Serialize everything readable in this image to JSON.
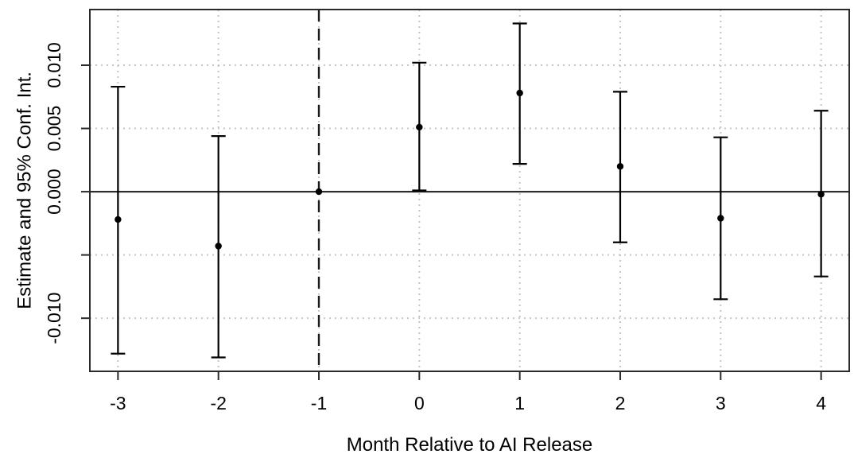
{
  "figure": {
    "background": "#ffffff"
  },
  "chart_data": {
    "type": "scatter",
    "subtype": "event-study-errorbar",
    "title": "",
    "xlabel": "Month Relative to AI Release",
    "ylabel": "Estimate and 95% Conf. Int.",
    "x": [
      -3,
      -2,
      -1,
      0,
      1,
      2,
      3,
      4
    ],
    "x_tick_labels": [
      "-3",
      "-2",
      "-1",
      "0",
      "1",
      "2",
      "3",
      "4"
    ],
    "series": [
      {
        "name": "estimate",
        "values": [
          -0.0022,
          -0.0043,
          0.0,
          0.0051,
          0.0078,
          0.002,
          -0.0021,
          -0.0002
        ]
      },
      {
        "name": "ci_lower",
        "values": [
          -0.0128,
          -0.0131,
          0.0,
          0.0001,
          0.0022,
          -0.004,
          -0.0085,
          -0.0067
        ]
      },
      {
        "name": "ci_upper",
        "values": [
          0.0083,
          0.0044,
          0.0,
          0.0102,
          0.0133,
          0.0079,
          0.0043,
          0.0064
        ]
      }
    ],
    "y_ticks": [
      -0.01,
      -0.005,
      0.0,
      0.005,
      0.01
    ],
    "y_tick_labels": [
      "-0.010",
      "",
      "0.000",
      "0.005",
      "0.010"
    ],
    "xlim": [
      -3.28,
      4.28
    ],
    "ylim": [
      -0.0142,
      0.0144
    ],
    "reference_line_x": -1,
    "zero_line_y": 0,
    "grid": true,
    "legend": "none",
    "colors": {
      "points": "#000000",
      "error_bars": "#000000",
      "grid": "#c5c5c5",
      "axis": "#2a2a2a",
      "zero_line": "#1a1a1a",
      "dashed_line": "#1a1a1a",
      "text": "#000000"
    }
  }
}
